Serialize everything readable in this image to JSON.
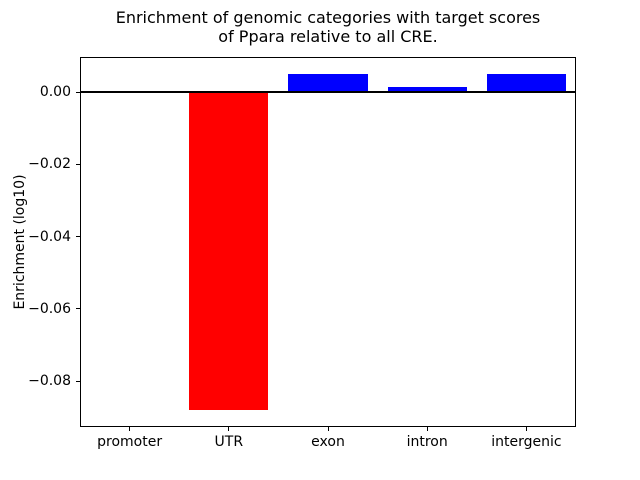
{
  "chart_data": {
    "type": "bar",
    "title_line1": "Enrichment of genomic categories with target scores",
    "title_line2": "of Ppara relative to all CRE.",
    "categories": [
      "promoter",
      "UTR",
      "exon",
      "intron",
      "intergenic"
    ],
    "values": [
      0.0,
      -0.088,
      0.005,
      0.0015,
      0.005
    ],
    "bar_colors": [
      "#0000ff",
      "#ff0000",
      "#0000ff",
      "#0000ff",
      "#0000ff"
    ],
    "xlabel": "",
    "ylabel": "Enrichment (log10)",
    "ylim": [
      -0.0927,
      0.0097
    ],
    "yticks": [
      {
        "value": 0.0,
        "label": "0.00"
      },
      {
        "value": -0.02,
        "label": "−0.02"
      },
      {
        "value": -0.04,
        "label": "−0.04"
      },
      {
        "value": -0.06,
        "label": "−0.06"
      },
      {
        "value": -0.08,
        "label": "−0.08"
      }
    ],
    "zero_line": true,
    "grid": false,
    "legend_position": "none",
    "colors": {
      "positive_bar": "#0000ff",
      "negative_bar": "#ff0000",
      "axis": "#000000",
      "background": "#ffffff"
    }
  }
}
